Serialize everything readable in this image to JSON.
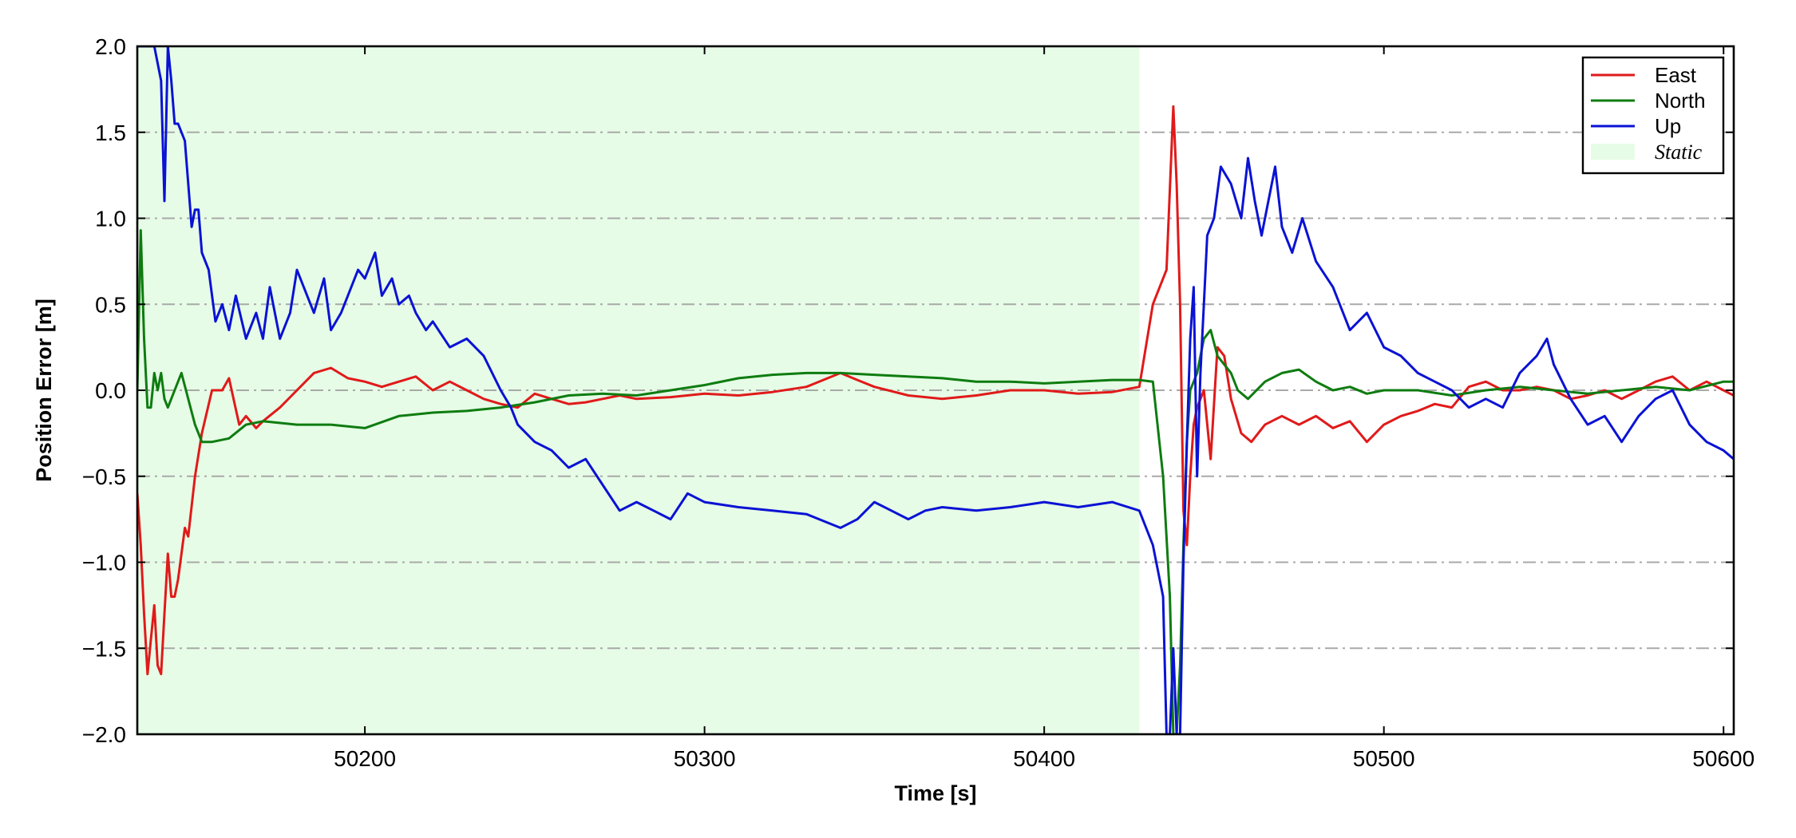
{
  "chart_data": {
    "type": "line",
    "xlabel": "Time [s]",
    "ylabel": "Position Error [m]",
    "xlim": [
      50133,
      50603
    ],
    "ylim": [
      -2.0,
      2.0
    ],
    "x_ticks": [
      50200,
      50300,
      50400,
      50500,
      50600
    ],
    "x_tick_labels": [
      "50200",
      "50300",
      "50400",
      "50500",
      "50600"
    ],
    "y_ticks": [
      -2.0,
      -1.5,
      -1.0,
      -0.5,
      0.0,
      0.5,
      1.0,
      1.5,
      2.0
    ],
    "y_tick_labels": [
      "−2.0",
      "−1.5",
      "−1.0",
      "−0.5",
      "0.0",
      "0.5",
      "1.0",
      "1.5",
      "2.0"
    ],
    "grid": {
      "y": true,
      "style": "dash-dot",
      "color": "#a9a9a9"
    },
    "legend_position": "top-right",
    "shaded_region": {
      "label": "Static",
      "x": [
        50133,
        50428
      ],
      "color": "#e6fce6"
    },
    "series": [
      {
        "name": "East",
        "color": "#e01a1a",
        "x": [
          50133,
          50134,
          50135,
          50136,
          50137,
          50138,
          50139,
          50140,
          50141,
          50142,
          50143,
          50144,
          50145,
          50147,
          50148,
          50150,
          50152,
          50155,
          50158,
          50160,
          50163,
          50165,
          50168,
          50170,
          50175,
          50180,
          50185,
          50190,
          50195,
          50200,
          50205,
          50210,
          50215,
          50220,
          50225,
          50230,
          50235,
          50240,
          50245,
          50250,
          50255,
          50260,
          50265,
          50270,
          50275,
          50280,
          50290,
          50300,
          50310,
          50320,
          50330,
          50340,
          50345,
          50350,
          50360,
          50370,
          50380,
          50390,
          50400,
          50410,
          50420,
          50428,
          50432,
          50436,
          50438,
          50439,
          50440,
          50441,
          50442,
          50443,
          50444,
          50445,
          50447,
          50449,
          50451,
          50453,
          50455,
          50458,
          50461,
          50465,
          50470,
          50475,
          50480,
          50485,
          50490,
          50495,
          50500,
          50505,
          50510,
          50515,
          50520,
          50525,
          50530,
          50535,
          50540,
          50545,
          50550,
          50555,
          50560,
          50565,
          50570,
          50575,
          50580,
          50585,
          50590,
          50595,
          50600,
          50603
        ],
        "y": [
          -0.6,
          -0.9,
          -1.3,
          -1.65,
          -1.45,
          -1.25,
          -1.6,
          -1.65,
          -1.3,
          -0.95,
          -1.2,
          -1.2,
          -1.1,
          -0.8,
          -0.85,
          -0.5,
          -0.25,
          0.0,
          0.0,
          0.07,
          -0.2,
          -0.15,
          -0.22,
          -0.18,
          -0.1,
          0.0,
          0.1,
          0.13,
          0.07,
          0.05,
          0.02,
          0.05,
          0.08,
          0.0,
          0.05,
          0.0,
          -0.05,
          -0.08,
          -0.1,
          -0.02,
          -0.05,
          -0.08,
          -0.07,
          -0.05,
          -0.03,
          -0.05,
          -0.04,
          -0.02,
          -0.03,
          -0.01,
          0.02,
          0.1,
          0.06,
          0.02,
          -0.03,
          -0.05,
          -0.03,
          0.0,
          0.0,
          -0.02,
          -0.01,
          0.02,
          0.5,
          0.7,
          1.65,
          1.2,
          0.5,
          -0.7,
          -0.9,
          -0.5,
          -0.2,
          -0.1,
          0.0,
          -0.4,
          0.25,
          0.2,
          -0.05,
          -0.25,
          -0.3,
          -0.2,
          -0.15,
          -0.2,
          -0.15,
          -0.22,
          -0.18,
          -0.3,
          -0.2,
          -0.15,
          -0.12,
          -0.08,
          -0.1,
          0.02,
          0.05,
          0.0,
          0.0,
          0.02,
          0.0,
          -0.05,
          -0.03,
          0.0,
          -0.05,
          0.0,
          0.05,
          0.08,
          0.0,
          0.05,
          0.0,
          -0.03
        ]
      },
      {
        "name": "North",
        "color": "#0e7c10",
        "x": [
          50133,
          50134,
          50135,
          50136,
          50137,
          50138,
          50139,
          50140,
          50141,
          50142,
          50144,
          50146,
          50148,
          50150,
          50152,
          50155,
          50160,
          50165,
          50170,
          50180,
          50190,
          50200,
          50210,
          50220,
          50230,
          50240,
          50250,
          50260,
          50270,
          50280,
          50290,
          50300,
          50310,
          50320,
          50330,
          50340,
          50350,
          50360,
          50370,
          50380,
          50390,
          50400,
          50410,
          50420,
          50428,
          50432,
          50435,
          50437,
          50438,
          50439,
          50440,
          50441,
          50442,
          50443,
          50445,
          50447,
          50449,
          50451,
          50453,
          50455,
          50457,
          50460,
          50465,
          50470,
          50475,
          50480,
          50485,
          50490,
          50495,
          50500,
          50510,
          50520,
          50530,
          50540,
          50550,
          50560,
          50570,
          50580,
          50590,
          50600,
          50603
        ],
        "y": [
          0.0,
          0.93,
          0.3,
          -0.1,
          -0.1,
          0.1,
          0.0,
          0.1,
          -0.05,
          -0.1,
          0.0,
          0.1,
          -0.05,
          -0.2,
          -0.3,
          -0.3,
          -0.28,
          -0.2,
          -0.18,
          -0.2,
          -0.2,
          -0.22,
          -0.15,
          -0.13,
          -0.12,
          -0.1,
          -0.07,
          -0.03,
          -0.02,
          -0.03,
          0.0,
          0.03,
          0.07,
          0.09,
          0.1,
          0.1,
          0.09,
          0.08,
          0.07,
          0.05,
          0.05,
          0.04,
          0.05,
          0.06,
          0.06,
          0.05,
          -0.5,
          -1.2,
          -2.0,
          -2.0,
          -1.6,
          -0.9,
          -0.3,
          0.0,
          0.1,
          0.3,
          0.35,
          0.2,
          0.15,
          0.1,
          0.0,
          -0.05,
          0.05,
          0.1,
          0.12,
          0.05,
          0.0,
          0.02,
          -0.02,
          0.0,
          0.0,
          -0.03,
          0.0,
          0.02,
          0.0,
          -0.02,
          0.0,
          0.02,
          0.0,
          0.05,
          0.05
        ]
      },
      {
        "name": "Up",
        "color": "#0a12d4",
        "x": [
          50133,
          50134,
          50135,
          50136,
          50138,
          50140,
          50141,
          50142,
          50143,
          50144,
          50145,
          50147,
          50149,
          50150,
          50151,
          50152,
          50154,
          50156,
          50158,
          50160,
          50162,
          50165,
          50168,
          50170,
          50172,
          50175,
          50178,
          50180,
          50183,
          50185,
          50188,
          50190,
          50193,
          50195,
          50198,
          50200,
          50203,
          50205,
          50208,
          50210,
          50213,
          50215,
          50218,
          50220,
          50225,
          50230,
          50235,
          50240,
          50243,
          50245,
          50250,
          50255,
          50260,
          50265,
          50270,
          50275,
          50280,
          50285,
          50290,
          50295,
          50300,
          50310,
          50320,
          50330,
          50340,
          50345,
          50350,
          50355,
          50360,
          50365,
          50370,
          50380,
          50390,
          50400,
          50410,
          50420,
          50428,
          50432,
          50435,
          50436,
          50437,
          50438,
          50439,
          50440,
          50441,
          50442,
          50443,
          50444,
          50445,
          50446,
          50447,
          50448,
          50450,
          50452,
          50455,
          50458,
          50460,
          50462,
          50464,
          50466,
          50468,
          50470,
          50473,
          50476,
          50480,
          50485,
          50490,
          50495,
          50500,
          50505,
          50510,
          50515,
          50520,
          50525,
          50530,
          50535,
          50540,
          50545,
          50548,
          50550,
          50555,
          50560,
          50565,
          50570,
          50575,
          50580,
          50585,
          50590,
          50595,
          50600,
          50603
        ],
        "y": [
          2.0,
          2.0,
          2.0,
          2.0,
          2.0,
          1.8,
          1.1,
          2.0,
          1.8,
          1.55,
          1.55,
          1.45,
          0.95,
          1.05,
          1.05,
          0.8,
          0.7,
          0.4,
          0.5,
          0.35,
          0.55,
          0.3,
          0.45,
          0.3,
          0.6,
          0.3,
          0.45,
          0.7,
          0.55,
          0.45,
          0.65,
          0.35,
          0.45,
          0.55,
          0.7,
          0.65,
          0.8,
          0.55,
          0.65,
          0.5,
          0.55,
          0.45,
          0.35,
          0.4,
          0.25,
          0.3,
          0.2,
          0.0,
          -0.1,
          -0.2,
          -0.3,
          -0.35,
          -0.45,
          -0.4,
          -0.55,
          -0.7,
          -0.65,
          -0.7,
          -0.75,
          -0.6,
          -0.65,
          -0.68,
          -0.7,
          -0.72,
          -0.8,
          -0.75,
          -0.65,
          -0.7,
          -0.75,
          -0.7,
          -0.68,
          -0.7,
          -0.68,
          -0.65,
          -0.68,
          -0.65,
          -0.7,
          -0.9,
          -1.2,
          -2.0,
          -2.0,
          -1.5,
          -2.0,
          -2.0,
          -1.0,
          -0.3,
          0.3,
          0.6,
          -0.5,
          0.1,
          0.5,
          0.9,
          1.0,
          1.3,
          1.2,
          1.0,
          1.35,
          1.1,
          0.9,
          1.1,
          1.3,
          0.95,
          0.8,
          1.0,
          0.75,
          0.6,
          0.35,
          0.45,
          0.25,
          0.2,
          0.1,
          0.05,
          0.0,
          -0.1,
          -0.05,
          -0.1,
          0.1,
          0.2,
          0.3,
          0.15,
          -0.05,
          -0.2,
          -0.15,
          -0.3,
          -0.15,
          -0.05,
          0.0,
          -0.2,
          -0.3,
          -0.35,
          -0.4
        ]
      }
    ]
  }
}
